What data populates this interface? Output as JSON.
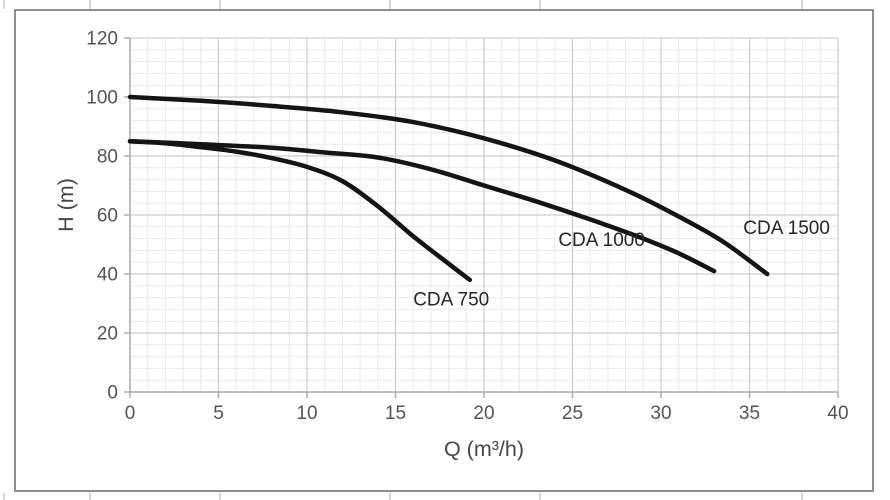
{
  "chart_data": {
    "type": "line",
    "title": "",
    "xlabel": "Q (m³/h)",
    "ylabel": "H (m)",
    "xlim": [
      0,
      40
    ],
    "ylim": [
      0,
      120
    ],
    "x_tick_step": 5,
    "y_tick_step": 20,
    "x_minor_step": 1,
    "y_minor_step": 4,
    "x_ticks": [
      "0",
      "5",
      "10",
      "15",
      "20",
      "25",
      "30",
      "35",
      "40"
    ],
    "y_ticks": [
      "0",
      "20",
      "40",
      "60",
      "80",
      "100",
      "120"
    ],
    "grid": true,
    "legend_position": "inline-annotations",
    "series": [
      {
        "name": "CDA 1500",
        "points": [
          [
            0,
            100
          ],
          [
            4,
            98.7
          ],
          [
            8,
            97
          ],
          [
            12,
            94.8
          ],
          [
            16,
            91.5
          ],
          [
            20,
            86
          ],
          [
            24,
            78.5
          ],
          [
            28,
            68.5
          ],
          [
            31,
            59.5
          ],
          [
            33.5,
            51
          ],
          [
            36,
            40
          ]
        ]
      },
      {
        "name": "CDA 1000",
        "points": [
          [
            0,
            85
          ],
          [
            4,
            84
          ],
          [
            8,
            82.8
          ],
          [
            11,
            81.2
          ],
          [
            14,
            79.5
          ],
          [
            17,
            75.5
          ],
          [
            20,
            70
          ],
          [
            23,
            64.5
          ],
          [
            26,
            58.5
          ],
          [
            29,
            52
          ],
          [
            31,
            47
          ],
          [
            33,
            41
          ]
        ]
      },
      {
        "name": "CDA 750",
        "points": [
          [
            0,
            85
          ],
          [
            2,
            84.3
          ],
          [
            4,
            83
          ],
          [
            6,
            81.5
          ],
          [
            8,
            79.3
          ],
          [
            10,
            76.3
          ],
          [
            12,
            71.5
          ],
          [
            14,
            63
          ],
          [
            16,
            52.8
          ],
          [
            18,
            43.5
          ],
          [
            19.2,
            38
          ]
        ]
      }
    ],
    "annotations": [
      {
        "text": "CDA 750",
        "x": 16.0,
        "y": 29.3
      },
      {
        "text": "CDA 1000",
        "x": 24.2,
        "y": 49.5
      },
      {
        "text": "CDA 1500",
        "x": 34.65,
        "y": 53.6
      }
    ],
    "colors": {
      "curve": "#141414",
      "grid_minor": "#e8e9ea",
      "grid_major": "#c9cdd0",
      "axis": "#a9adb0",
      "tick_label": "#545454",
      "axis_title": "#474747",
      "annotation": "#262626",
      "frame_border": "#8f8f8f",
      "edge_tick": "#d2d5d7"
    }
  },
  "frame": {
    "edge_tick_positions_x": [
      3,
      89,
      219,
      389,
      539,
      801
    ]
  }
}
